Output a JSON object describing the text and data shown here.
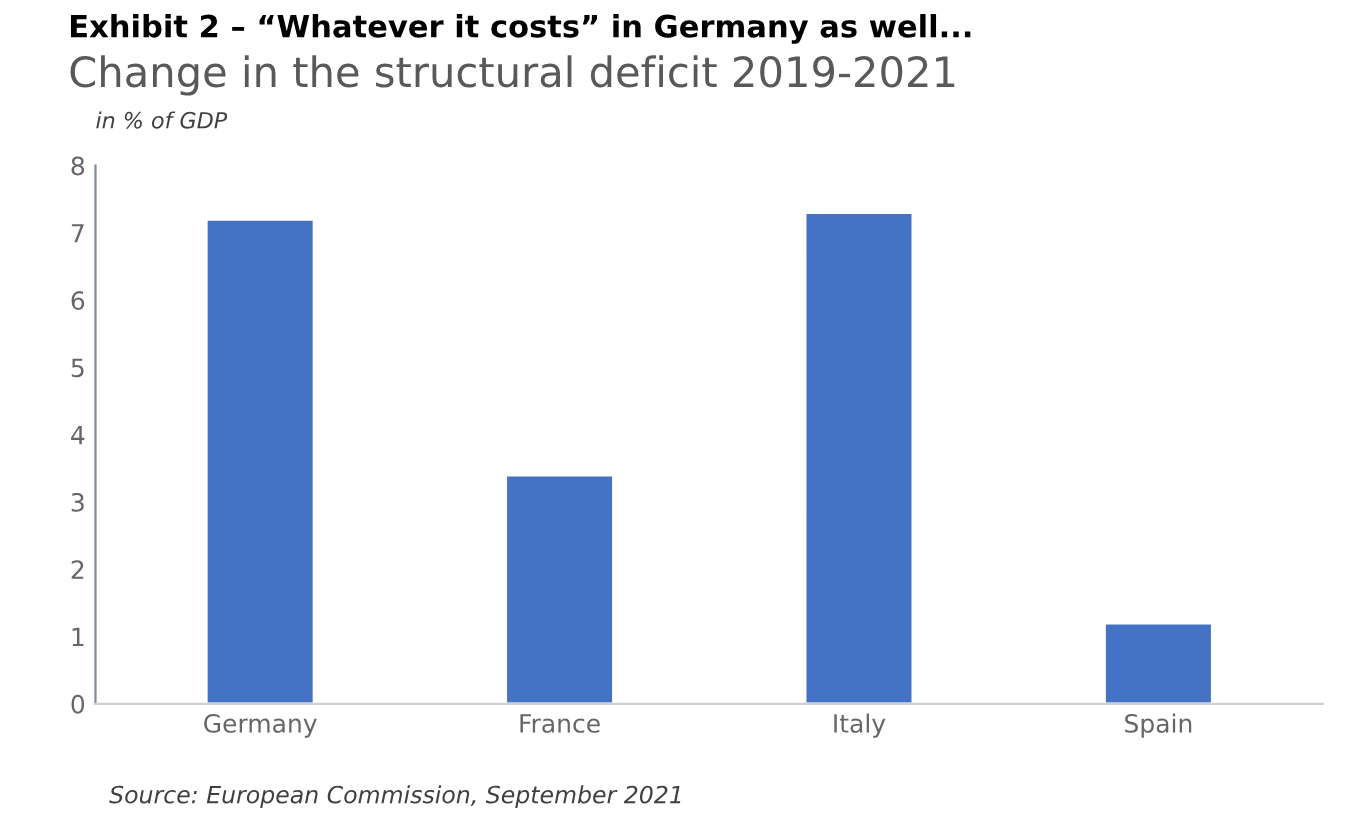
{
  "chart_data": {
    "type": "bar",
    "title": "Change in the structural deficit 2019-2021",
    "subtitle": "in % of GDP",
    "categories": [
      "Germany",
      "France",
      "Italy",
      "Spain"
    ],
    "values": [
      7.2,
      3.4,
      7.3,
      1.2
    ],
    "color": "#4472c4",
    "ylim": [
      0,
      8
    ],
    "yticks": [
      0,
      1,
      2,
      3,
      4,
      5,
      6,
      7,
      8
    ],
    "grid": false,
    "annotations": [
      "Exhibit 2 – “Whatever it costs” in Germany as well...",
      "Source: European Commission, September 2021"
    ]
  }
}
